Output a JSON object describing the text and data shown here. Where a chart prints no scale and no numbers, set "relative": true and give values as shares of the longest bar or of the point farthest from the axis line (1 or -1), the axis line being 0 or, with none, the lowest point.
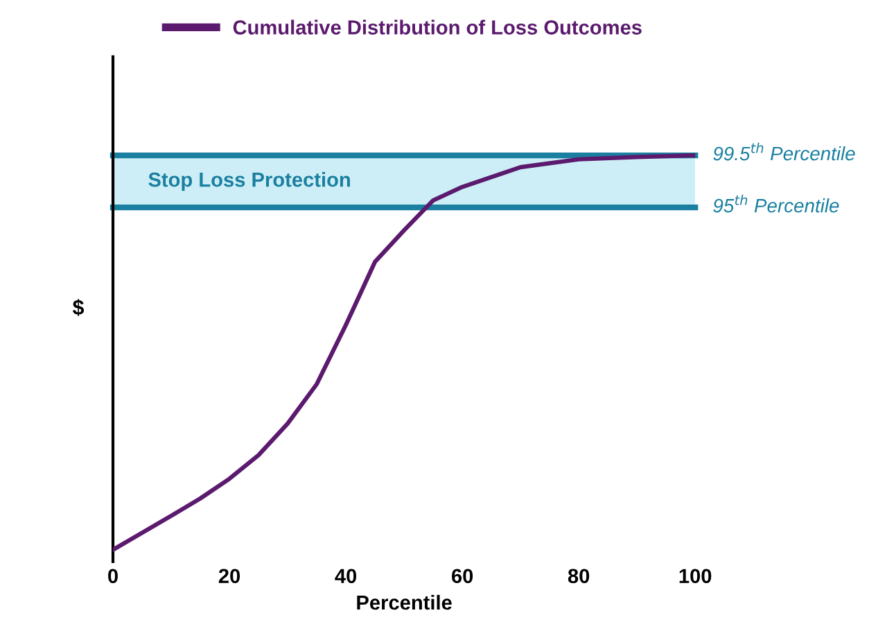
{
  "chart_data": {
    "type": "line",
    "relative": true,
    "xlabel": "Percentile",
    "ylabel": "$",
    "x": [
      0,
      5,
      10,
      15,
      20,
      25,
      30,
      35,
      40,
      45,
      50,
      55,
      60,
      70,
      80,
      90,
      100
    ],
    "series": [
      {
        "name": "Cumulative Distribution of Loss Outcomes",
        "color": "#5b1a6e",
        "values": [
          0,
          0.043,
          0.086,
          0.13,
          0.18,
          0.24,
          0.32,
          0.42,
          0.57,
          0.73,
          0.81,
          0.886,
          0.92,
          0.97,
          0.99,
          0.996,
          1
        ]
      }
    ],
    "xlim": [
      0,
      100
    ],
    "xticks": [
      0,
      20,
      40,
      60,
      80,
      100
    ],
    "ref_lines": [
      {
        "axis": "y",
        "value": 1,
        "label": "99.5$^{th}$ Percentile",
        "color": "#1a7fa0"
      },
      {
        "axis": "y",
        "value": 0.868,
        "label": "95$^{th}$ Percentile",
        "color": "#1a7fa0"
      }
    ],
    "bands": [
      {
        "axis": "y",
        "from": 0.868,
        "to": 1,
        "label": "Stop Loss Protection",
        "color": "#cdeef6"
      }
    ],
    "legend": "top",
    "grid": false,
    "marker": "none",
    "line_style": "solid"
  }
}
